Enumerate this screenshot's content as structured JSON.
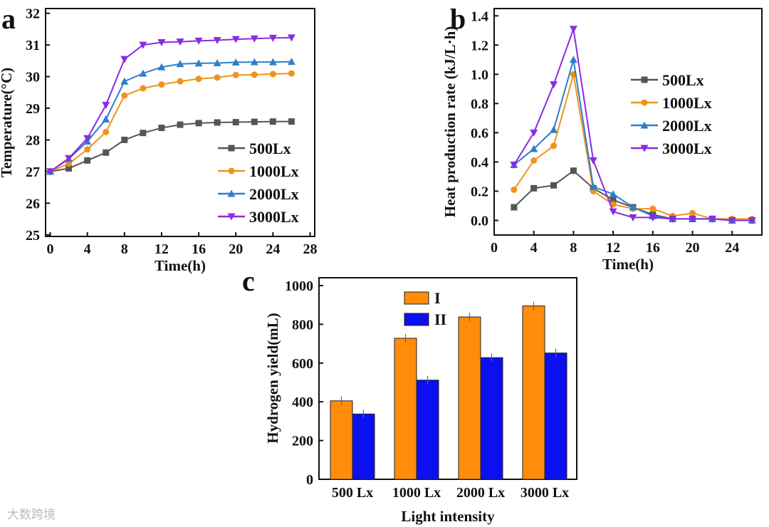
{
  "watermark": "大数跨境",
  "chart_data": [
    {
      "panel": "a",
      "type": "line",
      "xlabel": "Time(h)",
      "ylabel": "Temperature(°C)",
      "xlim": [
        0,
        28
      ],
      "ylim": [
        25,
        32
      ],
      "xticks": [
        0,
        4,
        8,
        12,
        16,
        20,
        24,
        28
      ],
      "yticks": [
        25,
        26,
        27,
        28,
        29,
        30,
        31,
        32
      ],
      "legend": "bottom-right",
      "x": [
        0,
        2,
        4,
        6,
        8,
        10,
        12,
        14,
        16,
        18,
        20,
        22,
        24,
        26
      ],
      "series": [
        {
          "name": "500Lx",
          "color": "#555555",
          "marker": "square",
          "values": [
            27,
            27.1,
            27.35,
            27.6,
            28.0,
            28.22,
            28.38,
            28.48,
            28.53,
            28.55,
            28.56,
            28.57,
            28.58,
            28.58
          ]
        },
        {
          "name": "1000Lx",
          "color": "#f0921c",
          "marker": "circle",
          "values": [
            27,
            27.25,
            27.7,
            28.25,
            29.4,
            29.63,
            29.75,
            29.85,
            29.93,
            29.97,
            30.05,
            30.06,
            30.08,
            30.1
          ]
        },
        {
          "name": "2000Lx",
          "color": "#2e7fc8",
          "marker": "triangle-up",
          "values": [
            27,
            27.4,
            27.95,
            28.65,
            29.85,
            30.1,
            30.3,
            30.4,
            30.42,
            30.43,
            30.45,
            30.46,
            30.46,
            30.47
          ]
        },
        {
          "name": "3000Lx",
          "color": "#8a2be2",
          "marker": "triangle-down",
          "values": [
            27,
            27.42,
            28.05,
            29.1,
            30.55,
            31.0,
            31.08,
            31.1,
            31.13,
            31.15,
            31.18,
            31.2,
            31.22,
            31.23
          ]
        }
      ]
    },
    {
      "panel": "b",
      "type": "line",
      "xlabel": "Time(h)",
      "ylabel": "Heat production rate (kJ/L·h)",
      "xlim": [
        0,
        27
      ],
      "ylim": [
        -0.1,
        1.45
      ],
      "xticks": [
        0,
        4,
        8,
        12,
        16,
        20,
        24
      ],
      "yticks": [
        0.0,
        0.2,
        0.4,
        0.6,
        0.8,
        1.0,
        1.2,
        1.4
      ],
      "legend": "center-right",
      "x": [
        2,
        4,
        6,
        8,
        10,
        12,
        14,
        16,
        18,
        20,
        22,
        24,
        26
      ],
      "series": [
        {
          "name": "500Lx",
          "color": "#555555",
          "marker": "square",
          "values": [
            0.09,
            0.22,
            0.24,
            0.34,
            0.22,
            0.14,
            0.09,
            0.04,
            0.01,
            0.01,
            0.01,
            0.0,
            0.0
          ]
        },
        {
          "name": "1000Lx",
          "color": "#f0921c",
          "marker": "circle",
          "values": [
            0.21,
            0.41,
            0.51,
            1.0,
            0.2,
            0.11,
            0.08,
            0.08,
            0.03,
            0.05,
            0.01,
            0.01,
            0.01
          ]
        },
        {
          "name": "2000Lx",
          "color": "#2e7fc8",
          "marker": "triangle-up",
          "values": [
            0.38,
            0.49,
            0.62,
            1.1,
            0.23,
            0.18,
            0.09,
            0.03,
            0.01,
            0.01,
            0.01,
            0.0,
            0.0
          ]
        },
        {
          "name": "3000Lx",
          "color": "#8a2be2",
          "marker": "triangle-down",
          "values": [
            0.38,
            0.6,
            0.93,
            1.31,
            0.41,
            0.06,
            0.02,
            0.02,
            0.01,
            0.01,
            0.01,
            0.0,
            0.0
          ]
        }
      ]
    },
    {
      "panel": "c",
      "type": "bar",
      "xlabel": "Light intensity",
      "ylabel": "Hydrogen yield(mL)",
      "ylim": [
        0,
        1000
      ],
      "yticks": [
        0,
        200,
        400,
        600,
        800,
        1000
      ],
      "legend": "top-left",
      "categories": [
        "500 Lx",
        "1000 Lx",
        "2000 Lx",
        "3000 Lx"
      ],
      "series": [
        {
          "name": "I",
          "color": "#ff8c0a",
          "values": [
            405,
            728,
            838,
            895
          ]
        },
        {
          "name": "II",
          "color": "#0a10f0",
          "values": [
            337,
            512,
            628,
            652
          ]
        }
      ]
    }
  ]
}
